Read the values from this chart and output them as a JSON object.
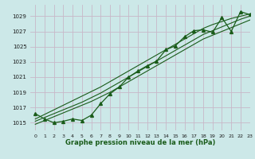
{
  "title": "Graphe pression niveau de la mer (hPa)",
  "bg_color": "#cce8e8",
  "grid_color": "#c8b8c8",
  "line_color": "#1a5c1a",
  "xlim": [
    -0.5,
    23
  ],
  "ylim": [
    1014.0,
    1030.5
  ],
  "yticks": [
    1015,
    1017,
    1019,
    1021,
    1023,
    1025,
    1027,
    1029
  ],
  "xticks": [
    0,
    1,
    2,
    3,
    4,
    5,
    6,
    7,
    8,
    9,
    10,
    11,
    12,
    13,
    14,
    15,
    16,
    17,
    18,
    19,
    20,
    21,
    22,
    23
  ],
  "x": [
    0,
    1,
    2,
    3,
    4,
    5,
    6,
    7,
    8,
    9,
    10,
    11,
    12,
    13,
    14,
    15,
    16,
    17,
    18,
    19,
    20,
    21,
    22,
    23
  ],
  "y_main": [
    1016.2,
    1015.5,
    1015.0,
    1015.2,
    1015.5,
    1015.3,
    1016.0,
    1017.5,
    1018.8,
    1019.7,
    1021.0,
    1021.8,
    1022.5,
    1023.1,
    1024.6,
    1025.1,
    1026.3,
    1027.1,
    1027.2,
    1026.9,
    1028.8,
    1027.0,
    1029.6,
    1029.2
  ],
  "y_trend_upper": [
    1015.5,
    1016.1,
    1016.7,
    1017.3,
    1017.9,
    1018.5,
    1019.1,
    1019.7,
    1020.4,
    1021.1,
    1021.8,
    1022.5,
    1023.2,
    1023.9,
    1024.6,
    1025.3,
    1026.0,
    1026.7,
    1027.4,
    1027.9,
    1028.3,
    1028.7,
    1029.0,
    1029.3
  ],
  "y_trend_mid": [
    1015.2,
    1015.7,
    1016.2,
    1016.7,
    1017.2,
    1017.7,
    1018.3,
    1018.9,
    1019.6,
    1020.3,
    1021.0,
    1021.7,
    1022.4,
    1023.1,
    1023.8,
    1024.5,
    1025.2,
    1025.9,
    1026.6,
    1027.1,
    1027.6,
    1028.1,
    1028.6,
    1029.0
  ],
  "y_trend_lower": [
    1014.8,
    1015.3,
    1015.8,
    1016.3,
    1016.8,
    1017.3,
    1017.8,
    1018.4,
    1019.0,
    1019.7,
    1020.4,
    1021.1,
    1021.8,
    1022.5,
    1023.2,
    1023.9,
    1024.6,
    1025.3,
    1026.0,
    1026.5,
    1027.0,
    1027.5,
    1028.0,
    1028.5
  ]
}
